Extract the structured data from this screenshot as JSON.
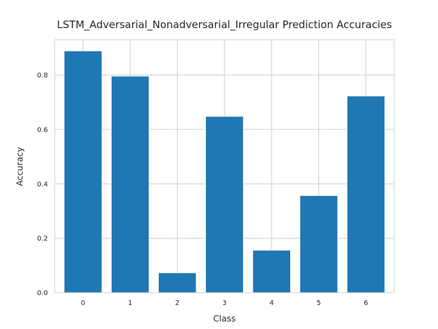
{
  "chart_data": {
    "type": "bar",
    "title": "LSTM_Adversarial_Nonadversarial_Irregular Prediction Accuracies",
    "xlabel": "Class",
    "ylabel": "Accuracy",
    "categories": [
      "0",
      "1",
      "2",
      "3",
      "4",
      "5",
      "6"
    ],
    "values": [
      0.889,
      0.796,
      0.073,
      0.648,
      0.156,
      0.357,
      0.723
    ],
    "ylim": [
      0,
      0.93
    ],
    "yticks": [
      0.0,
      0.2,
      0.4,
      0.6,
      0.8
    ],
    "ytick_labels": [
      "0.0",
      "0.2",
      "0.4",
      "0.6",
      "0.8"
    ],
    "grid": true,
    "bar_color": "#1f77b4"
  }
}
